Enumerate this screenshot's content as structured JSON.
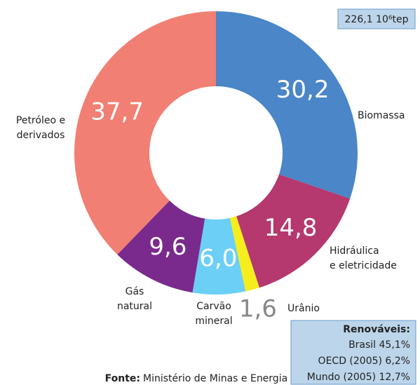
{
  "chart_data": {
    "type": "donut",
    "categories": [
      "Biomassa",
      "Hidráulica\ne eletricidade",
      "Urânio",
      "Carvão\nmineral",
      "Gás\nnatural",
      "Petróleo e\nderivados"
    ],
    "values": [
      30.2,
      14.8,
      1.6,
      6.0,
      9.6,
      37.7
    ],
    "value_labels": [
      "30,2",
      "14,8",
      "1,6",
      "6,0",
      "9,6",
      "37,7"
    ],
    "colors": [
      "#4a86c8",
      "#b5386e",
      "#f5ee1c",
      "#6ccff5",
      "#7a2a8c",
      "#f17f73"
    ],
    "total_label": "226,1 10⁶tep",
    "renewables": {
      "title": "Renováveis:",
      "items": [
        "Brasil 45,1%",
        "OECD (2005) 6,2%",
        "Mundo (2005) 12,7%"
      ]
    },
    "source_label": "Fonte:",
    "source": "Ministério de Minas e Energia"
  }
}
